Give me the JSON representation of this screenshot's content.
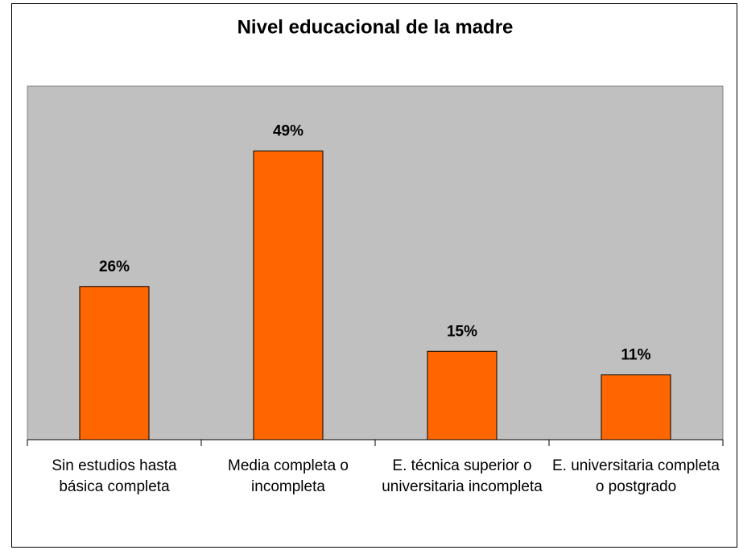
{
  "chart_data": {
    "type": "bar",
    "title": "Nivel educacional de la madre",
    "categories": [
      "Sin estudios hasta básica completa",
      "Media completa o incompleta",
      "E. técnica superior o universitaria incompleta",
      "E. universitaria completa o postgrado"
    ],
    "values": [
      26,
      49,
      15,
      11
    ],
    "value_labels": [
      "26%",
      "49%",
      "15%",
      "11%"
    ],
    "color": "#ff6600",
    "ylim": [
      0,
      60
    ]
  }
}
